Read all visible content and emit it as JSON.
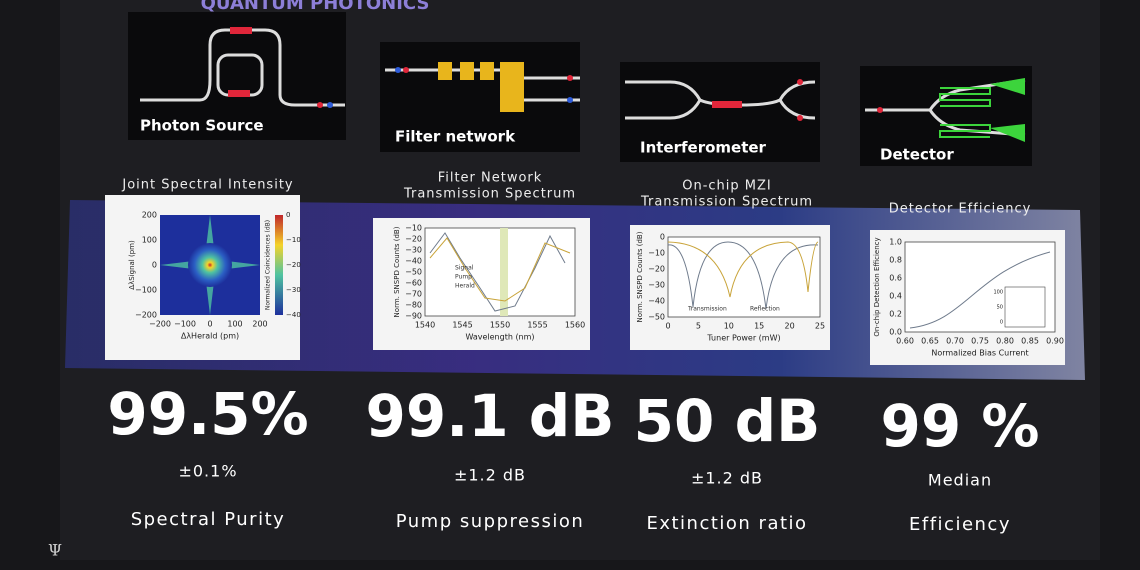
{
  "header": {
    "title": "QUANTUM PHOTONICS"
  },
  "logo": "Ψ",
  "panels": [
    {
      "diagram_label": "Photon Source",
      "plot_title": [
        "Joint Spectral Intensity"
      ],
      "plot": {
        "ylabel": "ΔλSignal (pm)",
        "xlabel": "ΔλHerald (pm)",
        "yticks": [
          "200",
          "100",
          "0",
          "−100",
          "−200"
        ],
        "xticks": [
          "−200",
          "−100",
          "0",
          "100",
          "200"
        ],
        "colorbar_label": "Normalized Coincidences (dB)",
        "colorbar_ticks": [
          "0",
          "−10",
          "−20",
          "−30",
          "−40"
        ]
      },
      "metric": "99.5%",
      "note": "±0.1%",
      "label": "Spectral Purity"
    },
    {
      "diagram_label": "Filter network",
      "plot_title": [
        "Filter Network",
        "Transmission Spectrum"
      ],
      "plot": {
        "ylabel": "Norm. SNSPD Counts (dB)",
        "xlabel": "Wavelength (nm)",
        "yticks": [
          "−10",
          "−20",
          "−30",
          "−40",
          "−50",
          "−60",
          "−70",
          "−80",
          "−90"
        ],
        "xticks": [
          "1540",
          "1545",
          "1550",
          "1555",
          "1560"
        ],
        "legend": [
          "Signal",
          "Pump",
          "Herald"
        ]
      },
      "metric": "99.1 dB",
      "note": "±1.2 dB",
      "label": "Pump suppression"
    },
    {
      "diagram_label": "Interferometer",
      "plot_title": [
        "On-chip MZI",
        "Transmission Spectrum"
      ],
      "plot": {
        "ylabel": "Norm. SNSPD Counts (dB)",
        "xlabel": "Tuner Power (mW)",
        "yticks": [
          "0",
          "−10",
          "−20",
          "−30",
          "−40",
          "−50"
        ],
        "xticks": [
          "0",
          "5",
          "10",
          "15",
          "20",
          "25"
        ],
        "legend": [
          "Transmission",
          "Reflection"
        ]
      },
      "metric": "50 dB",
      "note": "±1.2 dB",
      "label": "Extinction ratio"
    },
    {
      "diagram_label": "Detector",
      "plot_title": [
        "Detector Efficiency"
      ],
      "plot": {
        "ylabel": "On-chip Detection Efficiency",
        "xlabel": "Normalized Bias Current",
        "yticks": [
          "1.0",
          "0.8",
          "0.6",
          "0.4",
          "0.2",
          "0.0"
        ],
        "xticks": [
          "0.60",
          "0.65",
          "0.70",
          "0.75",
          "0.80",
          "0.85",
          "0.90"
        ],
        "inset_ticks": [
          "100",
          "50",
          "0"
        ]
      },
      "metric": "99 %",
      "note": "Median",
      "label": "Efficiency"
    }
  ]
}
